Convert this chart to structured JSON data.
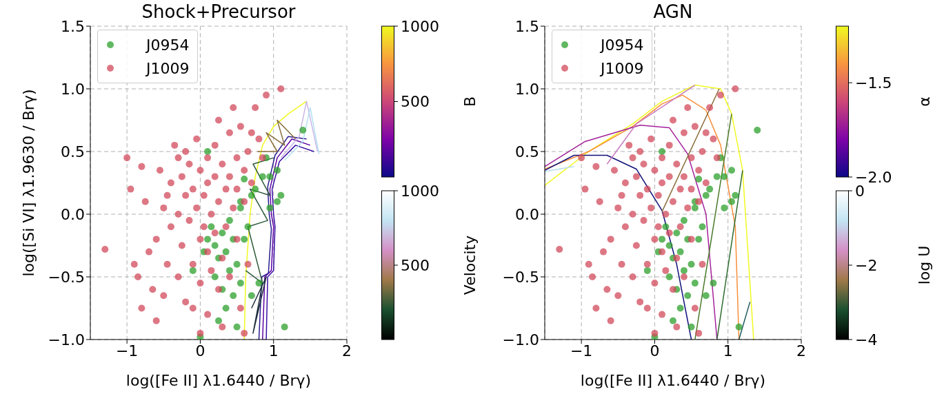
{
  "chart_data": [
    {
      "type": "scatter",
      "title": "Shock+Precursor",
      "xlabel": "log([Fe II] λ1.6440 / Brγ)",
      "ylabel": "log([Si VI] λ1.9630 / Brγ)",
      "xlim": [
        -1.5,
        2
      ],
      "ylim": [
        -1.0,
        1.5
      ],
      "xticks": [
        {
          "value": -1,
          "label": "−1"
        },
        0,
        1,
        2
      ],
      "yticks": [
        {
          "value": -1.0,
          "label": "−1.0"
        },
        {
          "value": -0.5,
          "label": "−0.5"
        },
        {
          "value": 0.0,
          "label": "0.0"
        },
        {
          "value": 0.5,
          "label": "0.5"
        },
        {
          "value": 1.0,
          "label": "1.0"
        },
        {
          "value": 1.5,
          "label": "1.5"
        }
      ],
      "grid": true,
      "legend": "top left",
      "marker": "circle",
      "clabel": "B",
      "clim": [
        0,
        1000
      ],
      "cticks": [
        500,
        1000
      ],
      "annotations": [
        "Velocity",
        "1000",
        "500"
      ],
      "series": [
        {
          "name": "J0954",
          "color": "#2ca02c",
          "x": [
            -0.1,
            0.1,
            0.05,
            0.1,
            0.15,
            0.2,
            0.2,
            0.25,
            0.3,
            0.3,
            0.35,
            0.35,
            0.4,
            0.4,
            0.45,
            0.45,
            0.5,
            0.5,
            0.55,
            0.55,
            0.6,
            0.6,
            0.65,
            0.7,
            0.7,
            0.75,
            0.8,
            0.85,
            0.9,
            0.95,
            0.95,
            1.05,
            1.05,
            1.1,
            1.15,
            1.4,
            0.25,
            0.0,
            0.55
          ],
          "values": [
            -0.45,
            0.5,
            -0.3,
            -0.2,
            -0.1,
            -0.25,
            -0.5,
            -0.35,
            -0.15,
            -0.6,
            -0.3,
            -0.75,
            -0.45,
            -0.05,
            -0.2,
            -0.65,
            -0.4,
            -0.9,
            -0.55,
            0.05,
            -0.2,
            0.28,
            -0.1,
            0.15,
            -0.65,
            0.2,
            -0.55,
            0.3,
            0.45,
            0.3,
            0.05,
            0.35,
            0.1,
            0.15,
            -0.9,
            0.67,
            -0.85,
            -0.98,
            0.1
          ]
        },
        {
          "name": "J1009",
          "color": "#d1495b",
          "x": [
            -1.3,
            -1.0,
            -0.95,
            -0.9,
            -0.85,
            -0.8,
            -0.75,
            -0.7,
            -0.65,
            -0.6,
            -0.55,
            -0.5,
            -0.5,
            -0.45,
            -0.4,
            -0.4,
            -0.35,
            -0.3,
            -0.3,
            -0.25,
            -0.25,
            -0.2,
            -0.2,
            -0.15,
            -0.15,
            -0.1,
            -0.1,
            -0.1,
            -0.05,
            -0.05,
            0.0,
            0.0,
            0.0,
            0.0,
            0.05,
            0.05,
            0.1,
            0.1,
            0.1,
            0.1,
            0.15,
            0.15,
            0.2,
            0.2,
            0.2,
            0.25,
            0.25,
            0.3,
            0.3,
            0.3,
            0.35,
            0.35,
            0.4,
            0.4,
            0.4,
            0.45,
            0.45,
            0.5,
            0.5,
            0.5,
            0.55,
            0.55,
            0.6,
            0.6,
            0.65,
            0.65,
            0.7,
            0.75,
            0.8,
            0.85,
            0.9,
            1.1,
            0.6,
            -0.6,
            -0.8,
            -0.3,
            0.25,
            -0.2,
            0.7,
            -0.45
          ],
          "values": [
            -0.28,
            0.45,
            0.2,
            -0.4,
            -0.5,
            0.38,
            0.1,
            -0.3,
            -0.6,
            -0.2,
            0.35,
            0.05,
            -0.65,
            -0.4,
            0.25,
            -0.1,
            0.55,
            0.0,
            -0.5,
            0.3,
            -0.25,
            0.15,
            -0.7,
            0.4,
            -0.05,
            0.2,
            -0.4,
            -0.75,
            0.6,
            0.05,
            0.35,
            -0.2,
            -0.55,
            -0.95,
            0.15,
            -0.1,
            0.45,
            0.25,
            -0.3,
            -0.8,
            0.0,
            -0.45,
            0.3,
            0.55,
            -0.15,
            0.1,
            -0.6,
            0.4,
            -0.35,
            -0.9,
            0.2,
            -0.1,
            0.65,
            0.3,
            -0.5,
            0.05,
            0.85,
            0.45,
            0.2,
            -0.2,
            0.7,
            -0.75,
            0.35,
            0.1,
            0.5,
            -0.4,
            0.25,
            0.85,
            0.6,
            0.45,
            0.95,
            1.0,
            -0.95,
            -0.85,
            -0.75,
            0.45,
            0.75,
            0.5,
            0.65,
            0.15
          ]
        },
        {
          "type": "line",
          "marker": "none",
          "color": "#f0f921",
          "x": [
            0.6,
            0.62,
            0.68,
            0.75,
            0.85,
            1.0,
            1.2,
            1.45
          ],
          "values": [
            -1.0,
            -0.5,
            0.0,
            0.3,
            0.55,
            0.7,
            0.8,
            0.9
          ]
        },
        {
          "type": "line",
          "marker": "none",
          "color": "#5b02a3",
          "x": [
            0.85,
            0.88,
            0.97,
            1.0,
            0.97,
            0.95,
            1.05,
            1.25,
            1.5
          ],
          "values": [
            -1.0,
            -0.5,
            -0.45,
            -0.1,
            0.0,
            0.2,
            0.45,
            0.6,
            0.55
          ]
        },
        {
          "type": "line",
          "marker": "none",
          "color": "#3a0ca3",
          "x": [
            0.9,
            0.92,
            1.0,
            1.02,
            1.0,
            0.98,
            1.08,
            1.3,
            1.55
          ],
          "values": [
            -1.0,
            -0.5,
            -0.45,
            -0.1,
            0.0,
            0.2,
            0.42,
            0.55,
            0.5
          ]
        },
        {
          "type": "line",
          "marker": "none",
          "color": "#2a1b8f",
          "x": [
            0.8,
            0.84,
            0.93,
            0.97,
            0.94,
            0.92,
            1.02,
            1.2,
            1.45
          ],
          "values": [
            -1.0,
            -0.5,
            -0.47,
            -0.12,
            0.0,
            0.22,
            0.47,
            0.62,
            0.6
          ]
        },
        {
          "type": "line",
          "marker": "none",
          "color": "#c9b6e8",
          "x": [
            1.1,
            1.35,
            1.45,
            1.6
          ],
          "values": [
            0.45,
            0.62,
            0.9,
            0.5
          ]
        },
        {
          "type": "line",
          "marker": "none",
          "color": "#b4e0f0",
          "x": [
            1.15,
            1.4,
            1.5,
            1.62
          ],
          "values": [
            0.43,
            0.58,
            0.85,
            0.48
          ]
        },
        {
          "type": "line",
          "marker": "none",
          "color": "#2d5a3a",
          "x": [
            0.62,
            0.85,
            0.65,
            0.92,
            0.68,
            0.95,
            0.72,
            1.0
          ],
          "values": [
            -0.45,
            -0.55,
            -0.1,
            -0.05,
            0.2,
            0.15,
            0.4,
            0.45
          ]
        },
        {
          "type": "line",
          "marker": "none",
          "color": "#8a6d3b",
          "x": [
            0.78,
            1.05,
            0.9,
            1.15,
            1.05,
            1.3
          ],
          "values": [
            0.5,
            0.5,
            0.65,
            0.55,
            0.75,
            0.6
          ]
        },
        {
          "type": "line",
          "marker": "none",
          "color": "#1f2f3f",
          "x": [
            0.7,
            0.9,
            0.72,
            0.85
          ],
          "values": [
            -0.75,
            -0.5,
            -0.95,
            -0.55
          ]
        }
      ]
    },
    {
      "type": "scatter",
      "title": "AGN",
      "xlabel": "log([Fe II] λ1.6440 / Brγ)",
      "xlim": [
        -1.5,
        2
      ],
      "ylim": [
        -1.0,
        1.5
      ],
      "xticks": [
        {
          "value": -1,
          "label": "−1"
        },
        0,
        1,
        2
      ],
      "yticks": [
        {
          "value": -1.0,
          "label": "−1.0"
        },
        {
          "value": -0.5,
          "label": "−0.5"
        },
        {
          "value": 0.0,
          "label": "0.0"
        },
        {
          "value": 0.5,
          "label": "0.5"
        },
        {
          "value": 1.0,
          "label": "1.0"
        },
        {
          "value": 1.5,
          "label": "1.5"
        }
      ],
      "grid": true,
      "legend": "top left",
      "marker": "circle",
      "clabel": "α",
      "clim": [
        -2.0,
        -1.2
      ],
      "cticks": [
        {
          "value": -2.0,
          "label": "−2.0"
        },
        {
          "value": -1.5,
          "label": "−1.5"
        }
      ],
      "annotations": [
        "log U",
        "0",
        "−2",
        "−4"
      ],
      "series": [
        {
          "name": "J0954",
          "color": "#2ca02c",
          "x": [
            -0.1,
            0.1,
            0.05,
            0.1,
            0.15,
            0.2,
            0.2,
            0.25,
            0.3,
            0.3,
            0.35,
            0.35,
            0.4,
            0.4,
            0.45,
            0.45,
            0.5,
            0.5,
            0.55,
            0.55,
            0.6,
            0.6,
            0.65,
            0.7,
            0.7,
            0.75,
            0.8,
            0.85,
            0.9,
            0.95,
            0.95,
            1.05,
            1.05,
            1.1,
            1.15,
            1.4,
            0.25,
            0.0,
            0.55
          ],
          "values": [
            -0.45,
            0.5,
            -0.3,
            -0.2,
            -0.1,
            -0.25,
            -0.5,
            -0.35,
            -0.15,
            -0.6,
            -0.3,
            -0.75,
            -0.45,
            -0.05,
            -0.2,
            -0.65,
            -0.4,
            -0.9,
            -0.55,
            0.05,
            -0.2,
            0.28,
            -0.1,
            0.15,
            -0.65,
            0.2,
            -0.55,
            0.3,
            0.45,
            0.3,
            0.05,
            0.35,
            0.1,
            0.15,
            -0.9,
            0.67,
            -0.85,
            -0.98,
            0.1
          ]
        },
        {
          "name": "J1009",
          "color": "#d1495b",
          "x": [
            -1.3,
            -1.0,
            -0.95,
            -0.9,
            -0.85,
            -0.8,
            -0.75,
            -0.7,
            -0.65,
            -0.6,
            -0.55,
            -0.5,
            -0.5,
            -0.45,
            -0.4,
            -0.4,
            -0.35,
            -0.3,
            -0.3,
            -0.25,
            -0.25,
            -0.2,
            -0.2,
            -0.15,
            -0.15,
            -0.1,
            -0.1,
            -0.1,
            -0.05,
            -0.05,
            0.0,
            0.0,
            0.0,
            0.0,
            0.05,
            0.05,
            0.1,
            0.1,
            0.1,
            0.1,
            0.15,
            0.15,
            0.2,
            0.2,
            0.2,
            0.25,
            0.25,
            0.3,
            0.3,
            0.3,
            0.35,
            0.35,
            0.4,
            0.4,
            0.4,
            0.45,
            0.45,
            0.5,
            0.5,
            0.5,
            0.55,
            0.55,
            0.6,
            0.6,
            0.65,
            0.65,
            0.7,
            0.75,
            0.8,
            0.85,
            0.9,
            1.1,
            0.6,
            -0.6,
            -0.8,
            -0.3,
            0.25,
            -0.2,
            0.7,
            -0.45
          ],
          "values": [
            -0.28,
            0.45,
            0.2,
            -0.4,
            -0.5,
            0.38,
            0.1,
            -0.3,
            -0.6,
            -0.2,
            0.35,
            0.05,
            -0.65,
            -0.4,
            0.25,
            -0.1,
            0.55,
            0.0,
            -0.5,
            0.3,
            -0.25,
            0.15,
            -0.7,
            0.4,
            -0.05,
            0.2,
            -0.4,
            -0.75,
            0.6,
            0.05,
            0.35,
            -0.2,
            -0.55,
            -0.95,
            0.15,
            -0.1,
            0.45,
            0.25,
            -0.3,
            -0.8,
            0.0,
            -0.45,
            0.3,
            0.55,
            -0.15,
            0.1,
            -0.6,
            0.4,
            -0.35,
            -0.9,
            0.2,
            -0.1,
            0.65,
            0.3,
            -0.5,
            0.05,
            0.85,
            0.45,
            0.2,
            -0.2,
            0.7,
            -0.75,
            0.35,
            0.1,
            0.5,
            -0.4,
            0.25,
            0.85,
            0.6,
            0.45,
            0.95,
            1.0,
            -0.95,
            -0.85,
            -0.75,
            0.45,
            0.75,
            0.5,
            0.65,
            0.15
          ]
        },
        {
          "type": "line",
          "marker": "none",
          "color": "#f0f921",
          "x": [
            -1.5,
            -0.9,
            -0.3,
            0.1,
            0.55,
            0.9,
            1.05,
            1.2,
            1.35
          ],
          "values": [
            0.23,
            0.5,
            0.72,
            0.9,
            1.03,
            1.0,
            0.8,
            0.35,
            -1.0
          ]
        },
        {
          "type": "line",
          "marker": "none",
          "color": "#f98e3a",
          "x": [
            -1.5,
            -0.9,
            -0.3,
            0.1,
            0.38,
            0.7,
            0.9,
            1.1,
            1.15
          ],
          "values": [
            0.36,
            0.5,
            0.7,
            0.88,
            0.95,
            0.83,
            0.55,
            -0.1,
            -1.0
          ]
        },
        {
          "type": "line",
          "marker": "none",
          "color": "#a3209b",
          "x": [
            -1.5,
            -0.95,
            -0.2,
            0.2,
            0.45,
            0.7,
            0.85
          ],
          "values": [
            0.38,
            0.58,
            0.71,
            0.69,
            0.48,
            0.0,
            -1.0
          ]
        },
        {
          "type": "line",
          "marker": "none",
          "color": "#10107a",
          "x": [
            -1.5,
            -1.1,
            -0.65,
            -0.25,
            0.1,
            0.3,
            0.5
          ],
          "values": [
            0.35,
            0.47,
            0.47,
            0.36,
            0.03,
            -0.4,
            -1.0
          ]
        },
        {
          "type": "line",
          "marker": "none",
          "color": "#c97bc0",
          "x": [
            -0.65,
            -0.25,
            0.55
          ],
          "values": [
            0.4,
            0.72,
            1.03
          ]
        },
        {
          "type": "line",
          "marker": "none",
          "color": "#8a6d3b",
          "x": [
            0.1,
            0.88
          ],
          "values": [
            0.02,
            1.0
          ]
        },
        {
          "type": "line",
          "marker": "none",
          "color": "#4a7a2a",
          "x": [
            0.55,
            1.05
          ],
          "values": [
            -1.0,
            0.8
          ]
        },
        {
          "type": "line",
          "marker": "none",
          "color": "#2e6b2e",
          "x": [
            0.85,
            1.2
          ],
          "values": [
            -1.0,
            0.35
          ]
        },
        {
          "type": "line",
          "marker": "none",
          "color": "#1f5a5a",
          "x": [
            1.15,
            1.3
          ],
          "values": [
            -1.0,
            -0.7
          ]
        },
        {
          "type": "line",
          "marker": "none",
          "color": "#b4dcef",
          "x": [
            -1.5,
            -1.1
          ],
          "values": [
            0.34,
            0.38
          ]
        }
      ]
    }
  ]
}
